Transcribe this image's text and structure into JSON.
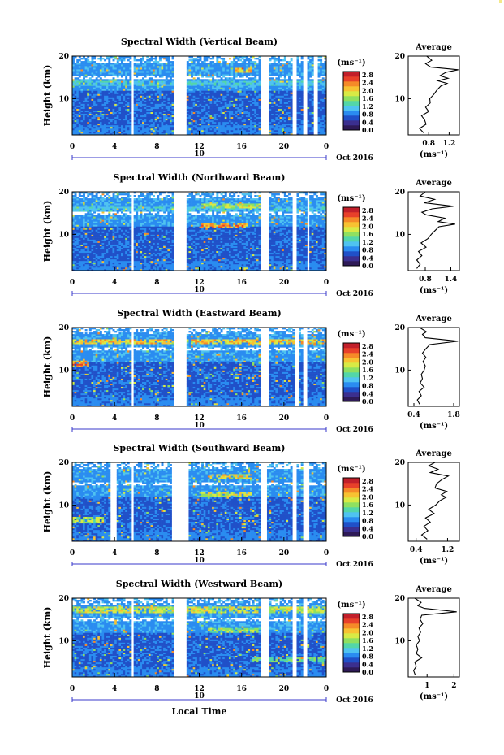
{
  "figure": {
    "xlabel": "Local Time",
    "date_label": "Oct 2016",
    "axis_tag": "10",
    "colorbar_units": "(ms⁻¹)",
    "avg_title": "Average",
    "avg_units": "(ms⁻¹)",
    "ylabel": "Height (km)"
  },
  "colorbar": {
    "ticks": [
      "0.0",
      "0.4",
      "0.8",
      "1.2",
      "1.6",
      "2.0",
      "2.4",
      "2.8"
    ],
    "colors": [
      "#2e1a57",
      "#3b2f8f",
      "#2050c8",
      "#2a8cf0",
      "#4fc3f0",
      "#53d6a8",
      "#8fe060",
      "#d8ea45",
      "#f7c232",
      "#f58a28",
      "#e8402a",
      "#c21f2a"
    ]
  },
  "chart_data": [
    {
      "type": "heatmap",
      "title": "Spectral Width (Vertical Beam)",
      "xlabel": "Local Time",
      "ylabel": "Height (km)",
      "x_ticks": [
        "0",
        "4",
        "8",
        "12",
        "16",
        "20",
        "0"
      ],
      "y_ticks": [
        "10",
        "20"
      ],
      "xlim": [
        0,
        24
      ],
      "ylim": [
        1.5,
        20
      ],
      "zlim": [
        0.0,
        3.0
      ],
      "gaps": [
        [
          5.6,
          5.8
        ],
        [
          9.7,
          10.8
        ],
        [
          17.8,
          18.6
        ],
        [
          20.9,
          21.2
        ],
        [
          21.9,
          22.2
        ],
        [
          22.8,
          23.2
        ]
      ],
      "features": [
        {
          "h": 16.8,
          "t0": 15.5,
          "t1": 17,
          "v": 2.4
        },
        {
          "h": 13.8,
          "t0": 0,
          "t1": 24,
          "v": 1.3
        }
      ],
      "avg": {
        "title": "Average",
        "xlim": [
          0.4,
          1.4
        ],
        "x_ticks": [
          "0.8",
          "1.2"
        ],
        "y_ticks": [
          "10",
          "20"
        ],
        "profile": [
          [
            2,
            0.7
          ],
          [
            3,
            0.62
          ],
          [
            4,
            0.75
          ],
          [
            5,
            0.72
          ],
          [
            6,
            0.66
          ],
          [
            7,
            0.8
          ],
          [
            8,
            0.74
          ],
          [
            9,
            0.83
          ],
          [
            10,
            0.82
          ],
          [
            11,
            0.9
          ],
          [
            12,
            0.96
          ],
          [
            13,
            1.04
          ],
          [
            13.6,
            1.16
          ],
          [
            14.2,
            0.98
          ],
          [
            14.8,
            1.18
          ],
          [
            15.4,
            1.02
          ],
          [
            16.2,
            1.14
          ],
          [
            16.8,
            1.38
          ],
          [
            17.4,
            0.84
          ],
          [
            18.2,
            0.74
          ],
          [
            19,
            0.86
          ],
          [
            20,
            0.76
          ]
        ]
      }
    },
    {
      "type": "heatmap",
      "title": "Spectral Width (Northward Beam)",
      "xlabel": "Local Time",
      "ylabel": "Height (km)",
      "x_ticks": [
        "0",
        "4",
        "8",
        "12",
        "16",
        "20",
        "0"
      ],
      "y_ticks": [
        "10",
        "20"
      ],
      "xlim": [
        0,
        24
      ],
      "ylim": [
        1.5,
        20
      ],
      "zlim": [
        0.0,
        3.0
      ],
      "gaps": [
        [
          5.6,
          5.8
        ],
        [
          9.7,
          10.8
        ],
        [
          17.8,
          18.6
        ],
        [
          20.9,
          21.2
        ],
        [
          22.1,
          22.4
        ]
      ],
      "features": [
        {
          "h": 12.2,
          "t0": 12,
          "t1": 16.5,
          "v": 2.6
        },
        {
          "h": 16.6,
          "t0": 12,
          "t1": 18,
          "v": 1.9
        },
        {
          "h": 15.8,
          "t0": 0,
          "t1": 24,
          "v": 1.2
        }
      ],
      "avg": {
        "title": "Average",
        "xlim": [
          0.4,
          1.6
        ],
        "x_ticks": [
          "0.8",
          "1.4"
        ],
        "y_ticks": [
          "10",
          "20"
        ],
        "profile": [
          [
            2,
            0.6
          ],
          [
            3,
            0.68
          ],
          [
            4,
            0.6
          ],
          [
            5,
            0.72
          ],
          [
            6,
            0.64
          ],
          [
            7,
            0.82
          ],
          [
            8,
            0.7
          ],
          [
            9,
            0.86
          ],
          [
            10,
            0.94
          ],
          [
            11,
            1.04
          ],
          [
            11.8,
            1.12
          ],
          [
            12.4,
            1.5
          ],
          [
            13,
            1.1
          ],
          [
            13.8,
            1.26
          ],
          [
            14.6,
            0.82
          ],
          [
            15.2,
            0.72
          ],
          [
            16,
            0.96
          ],
          [
            16.6,
            1.46
          ],
          [
            17.4,
            0.78
          ],
          [
            18.2,
            1.02
          ],
          [
            19,
            0.68
          ],
          [
            20,
            0.8
          ]
        ]
      }
    },
    {
      "type": "heatmap",
      "title": "Spectral Width (Eastward Beam)",
      "xlabel": "Local Time",
      "ylabel": "Height (km)",
      "x_ticks": [
        "0",
        "4",
        "8",
        "12",
        "16",
        "20",
        "0"
      ],
      "y_ticks": [
        "10",
        "20"
      ],
      "xlim": [
        0,
        24
      ],
      "ylim": [
        1.5,
        20
      ],
      "zlim": [
        0.0,
        3.0
      ],
      "gaps": [
        [
          5.6,
          5.8
        ],
        [
          9.7,
          10.8
        ],
        [
          17.8,
          18.6
        ],
        [
          21.1,
          21.3
        ],
        [
          21.9,
          22.1
        ]
      ],
      "features": [
        {
          "h": 16.8,
          "t0": 0,
          "t1": 24,
          "v": 2.3
        },
        {
          "h": 11.5,
          "t0": 0,
          "t1": 1.5,
          "v": 2.5
        }
      ],
      "avg": {
        "title": "Average",
        "xlim": [
          0.2,
          2.0
        ],
        "x_ticks": [
          "0.4",
          "1.8"
        ],
        "y_ticks": [
          "10",
          "20"
        ],
        "profile": [
          [
            2,
            0.6
          ],
          [
            3,
            0.52
          ],
          [
            4,
            0.66
          ],
          [
            5,
            0.58
          ],
          [
            6,
            0.76
          ],
          [
            7,
            0.62
          ],
          [
            8,
            0.7
          ],
          [
            9,
            0.66
          ],
          [
            10,
            0.76
          ],
          [
            11,
            0.8
          ],
          [
            12,
            0.72
          ],
          [
            13,
            0.82
          ],
          [
            14,
            0.7
          ],
          [
            15,
            0.82
          ],
          [
            16,
            0.96
          ],
          [
            16.8,
            1.95
          ],
          [
            17.6,
            0.8
          ],
          [
            18.4,
            0.7
          ],
          [
            19,
            0.84
          ],
          [
            20,
            0.6
          ]
        ]
      }
    },
    {
      "type": "heatmap",
      "title": "Spectral Width (Southward Beam)",
      "xlabel": "Local Time",
      "ylabel": "Height (km)",
      "x_ticks": [
        "0",
        "4",
        "8",
        "12",
        "16",
        "20",
        "0"
      ],
      "y_ticks": [
        "10",
        "20"
      ],
      "xlim": [
        0,
        24
      ],
      "ylim": [
        1.5,
        20
      ],
      "zlim": [
        0.0,
        3.0
      ],
      "gaps": [
        [
          3.7,
          4.1
        ],
        [
          5.6,
          5.8
        ],
        [
          9.4,
          10.9
        ],
        [
          17.8,
          18.4
        ],
        [
          20.8,
          21.1
        ],
        [
          21.9,
          22.3
        ]
      ],
      "features": [
        {
          "h": 16.8,
          "t0": 13,
          "t1": 17,
          "v": 2.2
        },
        {
          "h": 12.5,
          "t0": 12,
          "t1": 17,
          "v": 2.0
        },
        {
          "h": 6.5,
          "t0": 0,
          "t1": 3,
          "v": 1.8
        }
      ],
      "avg": {
        "title": "Average",
        "xlim": [
          0.2,
          1.5
        ],
        "x_ticks": [
          "0.4",
          "1.2"
        ],
        "y_ticks": [
          "10",
          "20"
        ],
        "profile": [
          [
            2,
            0.68
          ],
          [
            3,
            0.54
          ],
          [
            4,
            0.7
          ],
          [
            5,
            0.6
          ],
          [
            6,
            0.76
          ],
          [
            7,
            0.64
          ],
          [
            8,
            0.86
          ],
          [
            9,
            0.72
          ],
          [
            10,
            0.9
          ],
          [
            11,
            1.0
          ],
          [
            11.8,
            1.16
          ],
          [
            12.4,
            1.04
          ],
          [
            13.2,
            1.18
          ],
          [
            14,
            0.88
          ],
          [
            15,
            0.92
          ],
          [
            16,
            1.06
          ],
          [
            16.8,
            1.22
          ],
          [
            17.6,
            0.76
          ],
          [
            18.4,
            0.96
          ],
          [
            19.2,
            0.72
          ],
          [
            20,
            0.88
          ]
        ]
      }
    },
    {
      "type": "heatmap",
      "title": "Spectral Width (Westward Beam)",
      "xlabel": "Local Time",
      "ylabel": "Height (km)",
      "x_ticks": [
        "0",
        "4",
        "8",
        "12",
        "16",
        "20",
        "0"
      ],
      "y_ticks": [
        "10",
        "20"
      ],
      "xlim": [
        0,
        24
      ],
      "ylim": [
        1.5,
        20
      ],
      "zlim": [
        0.0,
        3.0
      ],
      "gaps": [
        [
          5.6,
          5.8
        ],
        [
          9.7,
          10.8
        ],
        [
          17.8,
          18.6
        ],
        [
          20.9,
          21.2
        ],
        [
          21.9,
          22.2
        ]
      ],
      "features": [
        {
          "h": 17.3,
          "t0": 0,
          "t1": 24,
          "v": 2.0
        },
        {
          "h": 12.5,
          "t0": 13,
          "t1": 18,
          "v": 1.7
        },
        {
          "h": 5.5,
          "t0": 17,
          "t1": 24,
          "v": 1.6
        }
      ],
      "avg": {
        "title": "Average",
        "xlim": [
          0.3,
          2.2
        ],
        "x_ticks": [
          "1",
          "2"
        ],
        "y_ticks": [
          "10",
          "20"
        ],
        "profile": [
          [
            2,
            0.56
          ],
          [
            3,
            0.5
          ],
          [
            4,
            0.6
          ],
          [
            5,
            0.54
          ],
          [
            6,
            0.8
          ],
          [
            7,
            0.6
          ],
          [
            8,
            0.66
          ],
          [
            9,
            0.6
          ],
          [
            10,
            0.72
          ],
          [
            11,
            0.66
          ],
          [
            12,
            0.76
          ],
          [
            13,
            0.7
          ],
          [
            14,
            0.84
          ],
          [
            15,
            0.74
          ],
          [
            16,
            0.8
          ],
          [
            16.8,
            2.1
          ],
          [
            17.6,
            0.9
          ],
          [
            18.2,
            0.66
          ],
          [
            19,
            0.78
          ],
          [
            20,
            0.54
          ]
        ]
      }
    }
  ]
}
